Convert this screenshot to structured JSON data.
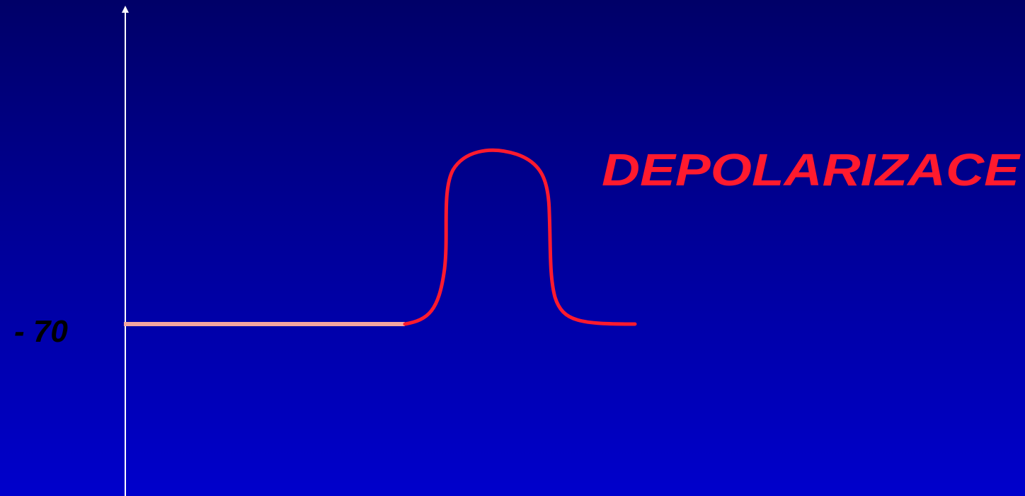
{
  "labels": {
    "y_value": "- 70",
    "annotation": "DEPOLARIZACE"
  }
}
